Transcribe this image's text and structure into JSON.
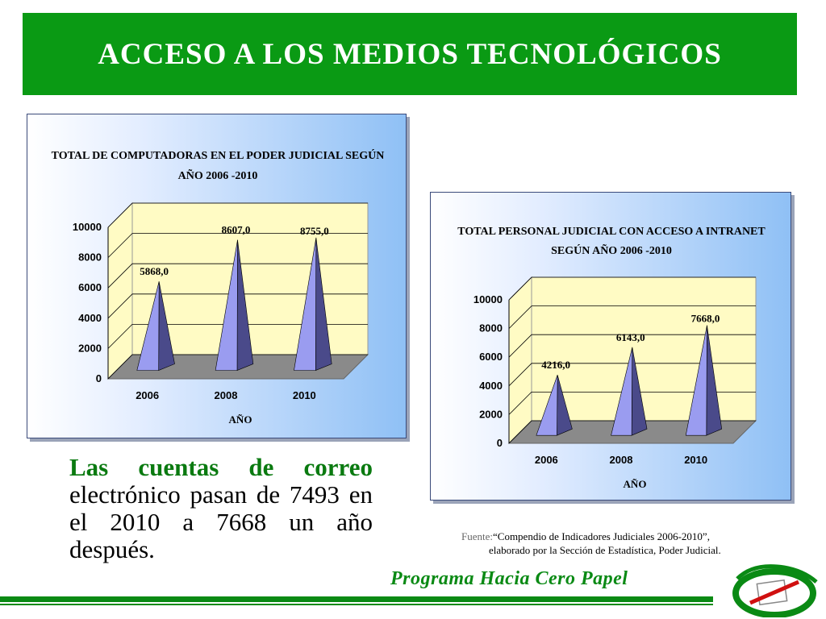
{
  "header": {
    "title": "ACCESO A LOS MEDIOS TECNOLÓGICOS"
  },
  "chart_data": [
    {
      "type": "bar",
      "title_line1": "TOTAL DE COMPUTADORAS  EN EL PODER JUDICIAL SEGÚN",
      "title_line2": "AÑO 2006 -2010",
      "categories": [
        "2006",
        "2008",
        "2010"
      ],
      "values": [
        5868,
        8607,
        8755
      ],
      "data_labels": [
        "5868,0",
        "8607,0",
        "8755,0"
      ],
      "xlabel": "AÑO",
      "ylabel": "",
      "ylim": [
        0,
        10000
      ],
      "yticks": [
        "0",
        "2000",
        "4000",
        "6000",
        "8000",
        "10000"
      ],
      "grid": true,
      "shape": "pyramid"
    },
    {
      "type": "bar",
      "title_line1": "TOTAL PERSONAL JUDICIAL CON ACCESO A INTRANET",
      "title_line2": "SEGÚN AÑO 2006 -2010",
      "categories": [
        "2006",
        "2008",
        "2010"
      ],
      "values": [
        4216,
        6143,
        7668
      ],
      "data_labels": [
        "4216,0",
        "6143,0",
        "7668,0"
      ],
      "xlabel": "AÑO",
      "ylabel": "",
      "ylim": [
        0,
        10000
      ],
      "yticks": [
        "0",
        "2000",
        "4000",
        "6000",
        "8000",
        "10000"
      ],
      "grid": true,
      "shape": "pyramid"
    }
  ],
  "body": {
    "bold": "Las cuentas de correo",
    "rest": "electrónico pasan de 7493 en el 2010 a 7668 un año después."
  },
  "source": {
    "label": "Fuente:",
    "line1": "“Compendio de Indicadores Judiciales 2006-2010”,",
    "line2": "elaborado por la Sección de Estadística, Poder Judicial."
  },
  "footer": {
    "text": "Programa Hacia Cero Papel"
  },
  "colors": {
    "green": "#0a9a14",
    "plot_bg": "#fffbc4",
    "pyramid_front": "#9a9cf0",
    "pyramid_side": "#4a4a8a",
    "floor": "#8a8a8a"
  }
}
